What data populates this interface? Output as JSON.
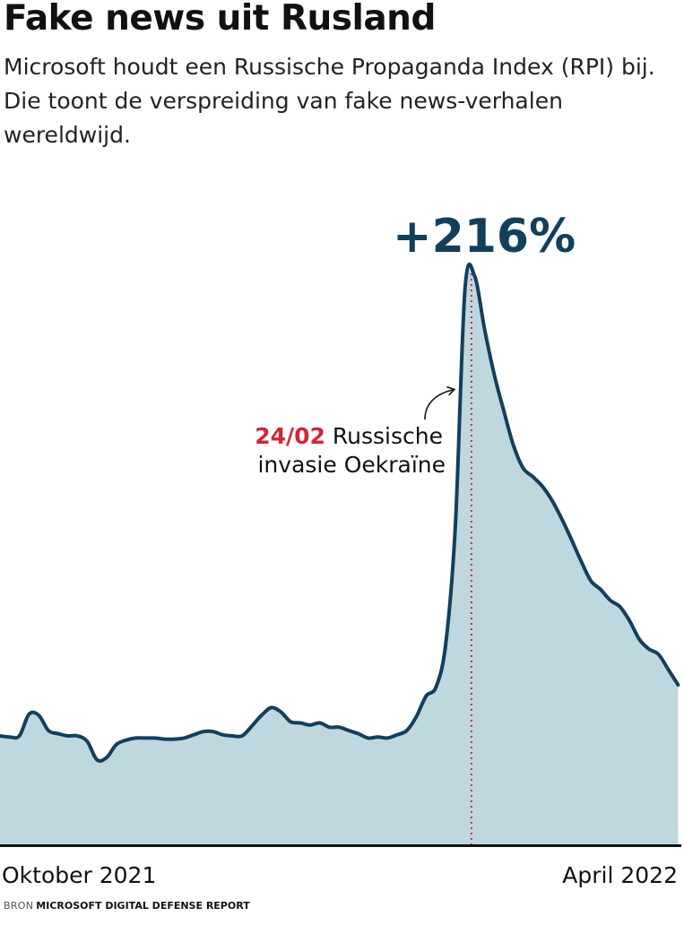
{
  "header": {
    "title": "Fake news uit Rusland",
    "subtitle": "Microsoft houdt een Russische Propaganda Index (RPI) bij. Die toont de verspreiding van fake news-verhalen wereldwijd."
  },
  "footer": {
    "source_label": "BRON",
    "source_name": "MICROSOFT DIGITAL DEFENSE REPORT"
  },
  "colors": {
    "line": "#123f5c",
    "area": "#bfd7df",
    "marker": "#d0263a",
    "peak_label": "#123f5c",
    "axis": "#111111"
  },
  "chart_data": {
    "type": "area",
    "title": "Fake news uit Rusland",
    "x_start_label": "Oktober 2021",
    "x_end_label": "April 2022",
    "xlim": [
      "2021-10-01",
      "2022-04-30"
    ],
    "peak_label": "+216%",
    "annotation": {
      "date": "2022-02-24",
      "date_label": "24/02",
      "text_line1": "Russische",
      "text_line2": "invasie Oekraïne"
    },
    "grid": false,
    "legend": "none",
    "x": [
      "2021-10-01",
      "2021-10-04",
      "2021-10-07",
      "2021-10-10",
      "2021-10-13",
      "2021-10-16",
      "2021-10-19",
      "2021-10-22",
      "2021-10-25",
      "2021-10-28",
      "2021-10-31",
      "2021-11-03",
      "2021-11-06",
      "2021-11-09",
      "2021-11-12",
      "2021-11-15",
      "2021-11-18",
      "2021-11-21",
      "2021-11-24",
      "2021-11-27",
      "2021-11-30",
      "2021-12-03",
      "2021-12-06",
      "2021-12-09",
      "2021-12-12",
      "2021-12-15",
      "2021-12-18",
      "2021-12-21",
      "2021-12-24",
      "2021-12-27",
      "2021-12-30",
      "2022-01-02",
      "2022-01-05",
      "2022-01-08",
      "2022-01-11",
      "2022-01-14",
      "2022-01-17",
      "2022-01-20",
      "2022-01-23",
      "2022-01-26",
      "2022-01-29",
      "2022-02-01",
      "2022-02-04",
      "2022-02-07",
      "2022-02-10",
      "2022-02-13",
      "2022-02-16",
      "2022-02-19",
      "2022-02-22",
      "2022-02-25",
      "2022-02-28",
      "2022-03-03",
      "2022-03-06",
      "2022-03-09",
      "2022-03-12",
      "2022-03-15",
      "2022-03-18",
      "2022-03-21",
      "2022-03-24",
      "2022-03-27",
      "2022-03-30",
      "2022-04-02",
      "2022-04-05",
      "2022-04-08",
      "2022-04-11",
      "2022-04-14",
      "2022-04-17",
      "2022-04-20",
      "2022-04-23",
      "2022-04-26",
      "2022-04-29"
    ],
    "values": [
      100,
      99,
      100,
      120,
      119,
      105,
      102,
      100,
      100,
      95,
      78,
      80,
      92,
      96,
      98,
      98,
      98,
      97,
      97,
      98,
      101,
      104,
      104,
      101,
      100,
      100,
      109,
      119,
      126,
      122,
      113,
      112,
      110,
      112,
      108,
      108,
      105,
      102,
      98,
      99,
      98,
      101,
      105,
      118,
      137,
      145,
      184,
      293,
      512,
      524,
      476,
      434,
      400,
      368,
      347,
      339,
      330,
      317,
      300,
      281,
      261,
      243,
      235,
      225,
      219,
      206,
      189,
      180,
      175,
      161,
      147
    ]
  }
}
